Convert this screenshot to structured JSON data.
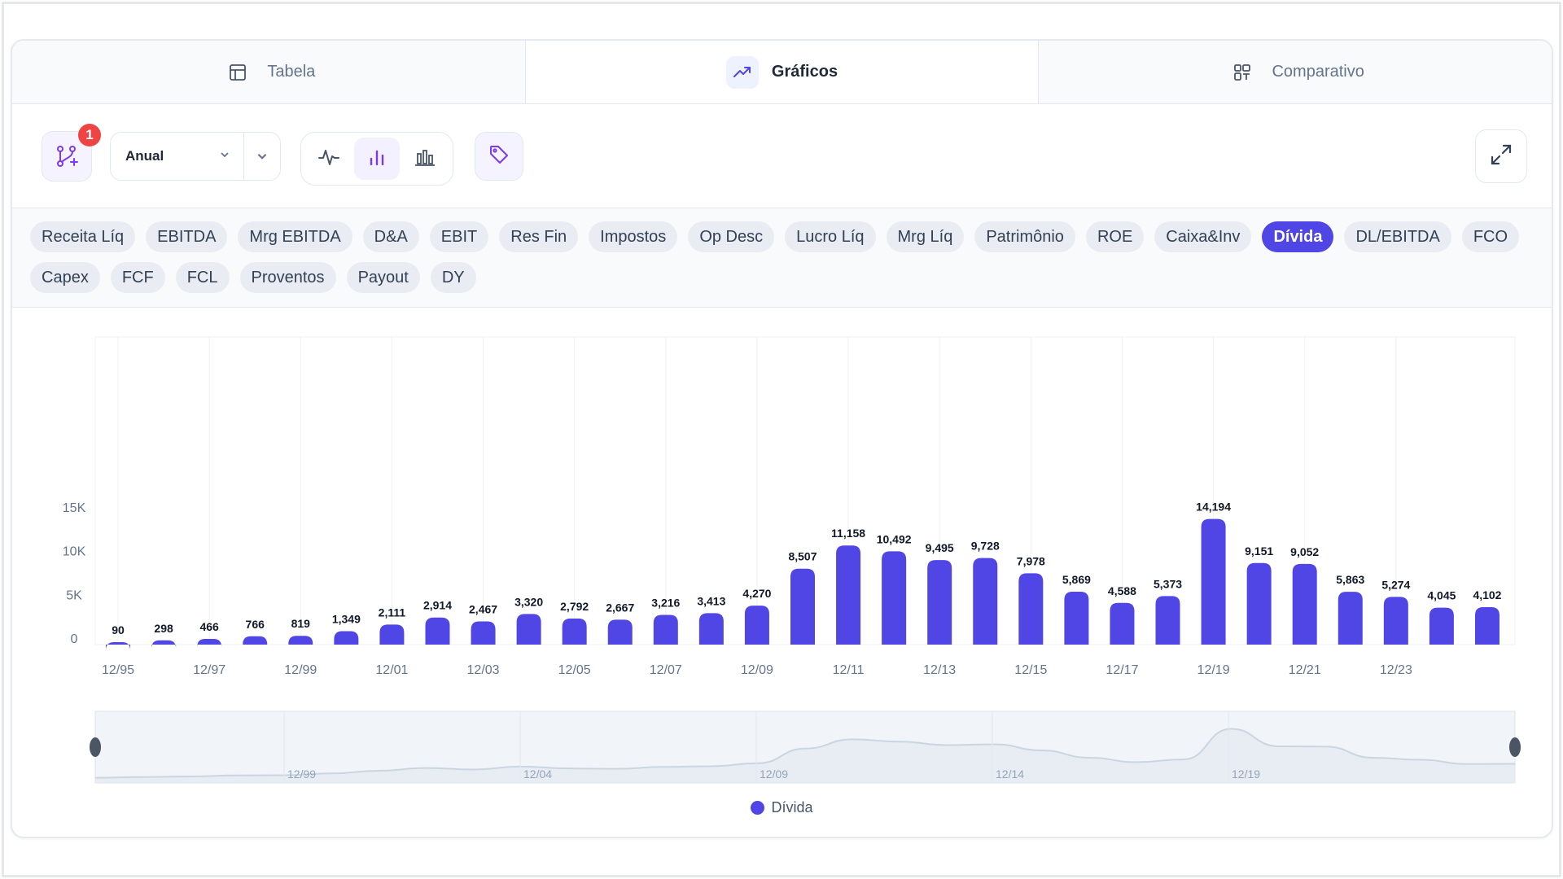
{
  "tabs": [
    {
      "label": "Tabela",
      "icon": "table-icon"
    },
    {
      "label": "Gráficos",
      "icon": "trending-up-icon"
    },
    {
      "label": "Comparativo",
      "icon": "compare-icon"
    }
  ],
  "toolbar": {
    "badge_count": "1",
    "period_value": "Anual",
    "chart_types": [
      "line-chart-icon",
      "bar-chart-icon",
      "grouped-bar-chart-icon"
    ],
    "active_chart_type": "bar",
    "tag_icon": "tag-icon",
    "expand_icon": "expand-icon"
  },
  "metrics": [
    "Receita Líq",
    "EBITDA",
    "Mrg EBITDA",
    "D&A",
    "EBIT",
    "Res Fin",
    "Impostos",
    "Op Desc",
    "Lucro Líq",
    "Mrg Líq",
    "Patrimônio",
    "ROE",
    "Caixa&Inv",
    "Dívida",
    "DL/EBITDA",
    "FCO",
    "Capex",
    "FCF",
    "FCL",
    "Proventos",
    "Payout",
    "DY"
  ],
  "active_metric": "Dívida",
  "colors": {
    "accent": "#4f46e5",
    "badge": "#ef4444"
  },
  "chart_data": {
    "type": "bar",
    "categories": [
      "12/95",
      "12/96",
      "12/97",
      "12/98",
      "12/99",
      "12/00",
      "12/01",
      "12/02",
      "12/03",
      "12/04",
      "12/05",
      "12/06",
      "12/07",
      "12/08",
      "12/09",
      "12/10",
      "12/11",
      "12/12",
      "12/13",
      "12/14",
      "12/15",
      "12/16",
      "12/17",
      "12/18",
      "12/19",
      "12/20",
      "12/21",
      "12/22",
      "12/23",
      "12/24",
      "12/25"
    ],
    "x_tick_labels": [
      "12/95",
      "12/97",
      "12/99",
      "12/01",
      "12/03",
      "12/05",
      "12/07",
      "12/09",
      "12/11",
      "12/13",
      "12/15",
      "12/17",
      "12/19",
      "12/21",
      "12/23"
    ],
    "series": [
      {
        "name": "Dívida",
        "values": [
          90,
          298,
          466,
          766,
          819,
          1349,
          2111,
          2914,
          2467,
          3320,
          2792,
          2667,
          3216,
          3413,
          4270,
          8507,
          11158,
          10492,
          9495,
          9728,
          7978,
          5869,
          4588,
          5373,
          14194,
          9151,
          9052,
          5863,
          5274,
          4045,
          4102
        ]
      }
    ],
    "data_labels": [
      "90",
      "298",
      "466",
      "766",
      "819",
      "1,349",
      "2,111",
      "2,914",
      "2,467",
      "3,320",
      "2,792",
      "2,667",
      "3,216",
      "3,413",
      "4,270",
      "8,507",
      "11,158",
      "10,492",
      "9,495",
      "9,728",
      "7,978",
      "5,869",
      "4,588",
      "5,373",
      "14,194",
      "9,151",
      "9,052",
      "5,863",
      "5,274",
      "4,045",
      "4,102"
    ],
    "y_ticks": [
      "0",
      "5K",
      "10K",
      "15K"
    ],
    "ylim": [
      0,
      20000
    ],
    "grid": true,
    "legend": "bottom-center",
    "navigator_labels": [
      "12/99",
      "12/04",
      "12/09",
      "12/14",
      "12/19"
    ]
  }
}
